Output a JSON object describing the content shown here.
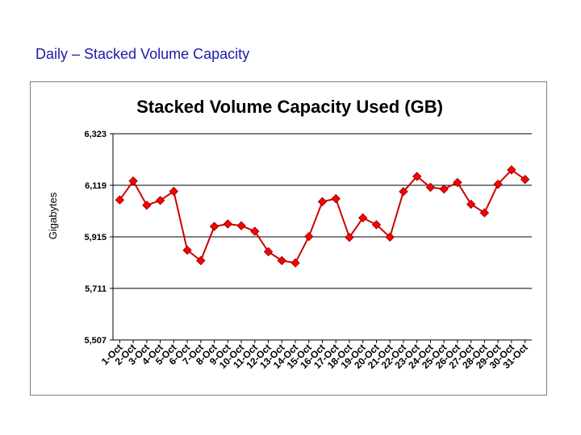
{
  "slide": {
    "title": "Daily – Stacked Volume Capacity"
  },
  "chart_data": {
    "type": "line",
    "title": "Stacked Volume Capacity Used (GB)",
    "xlabel": "",
    "ylabel": "Gigabytes",
    "ylim": [
      5507,
      6323
    ],
    "yticks": [
      "5,507",
      "5,711",
      "5,915",
      "6,119",
      "6,323"
    ],
    "grid": true,
    "marker": "diamond",
    "line_color": "#cc0000",
    "marker_color": "#ff0000",
    "categories": [
      "1-Oct",
      "2-Oct",
      "3-Oct",
      "4-Oct",
      "5-Oct",
      "6-Oct",
      "7-Oct",
      "8-Oct",
      "9-Oct",
      "10-Oct",
      "11-Oct",
      "12-Oct",
      "13-Oct",
      "14-Oct",
      "15-Oct",
      "16-Oct",
      "17-Oct",
      "18-Oct",
      "19-Oct",
      "20-Oct",
      "21-Oct",
      "22-Oct",
      "23-Oct",
      "24-Oct",
      "25-Oct",
      "26-Oct",
      "27-Oct",
      "28-Oct",
      "29-Oct",
      "30-Oct",
      "31-Oct"
    ],
    "values": [
      6061,
      6136,
      6040,
      6059,
      6095,
      5862,
      5821,
      5956,
      5966,
      5959,
      5937,
      5856,
      5821,
      5812,
      5916,
      6054,
      6066,
      5913,
      5990,
      5963,
      5914,
      6094,
      6154,
      6111,
      6104,
      6130,
      6044,
      6010,
      6123,
      6180,
      6142
    ]
  }
}
